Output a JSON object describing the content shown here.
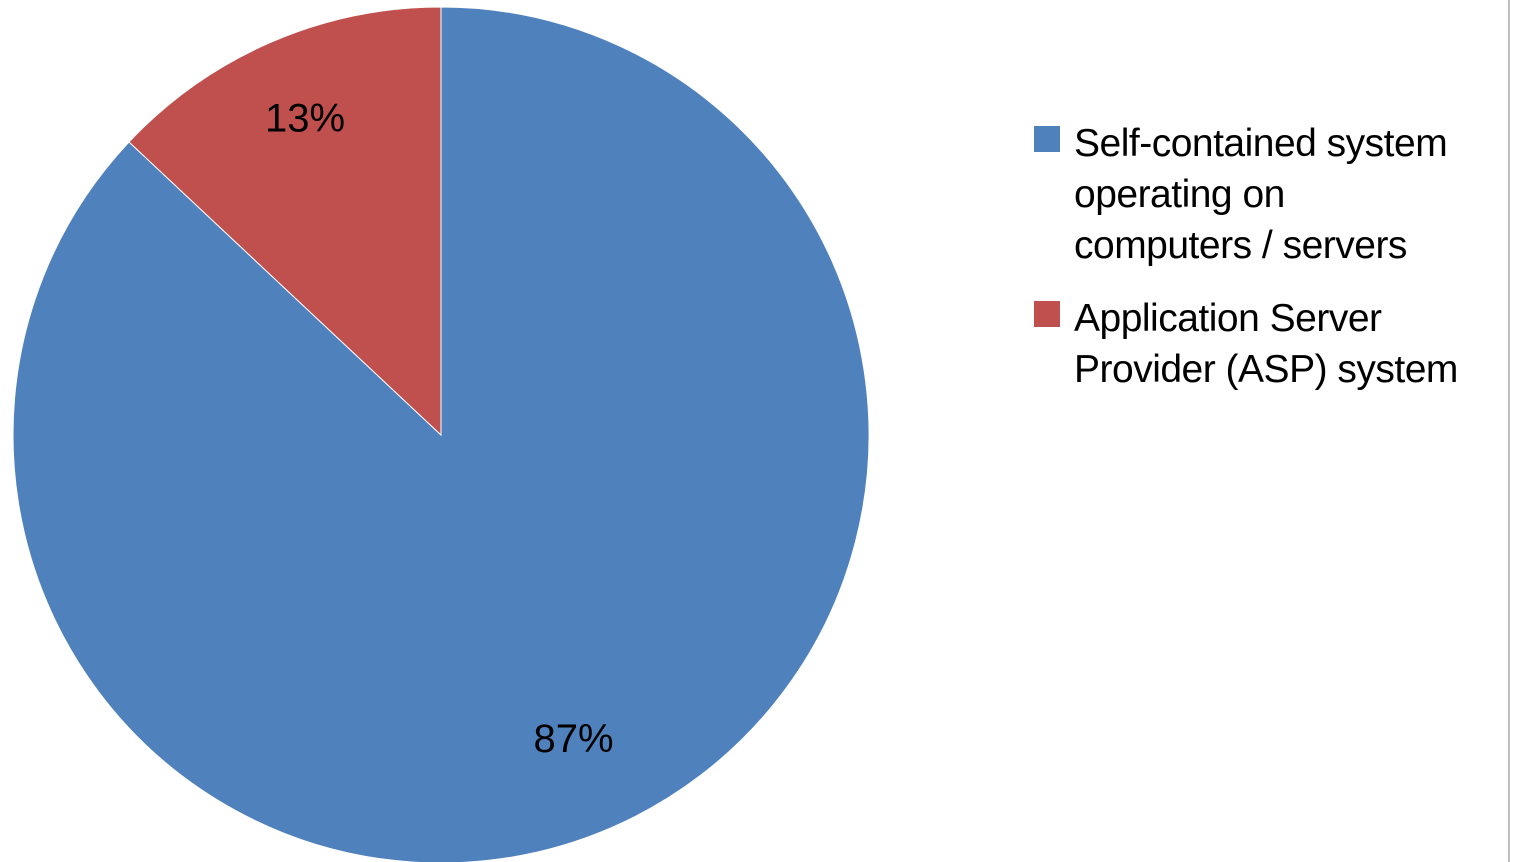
{
  "chart_data": {
    "type": "pie",
    "title": "",
    "start_angle_deg": 0,
    "direction": "clockwise",
    "slices": [
      {
        "name": "Self-contained system\noperating on\ncomputers / servers",
        "value": 87,
        "label": "87%",
        "color": "#4F81BD"
      },
      {
        "name": "Application Server\nProvider (ASP) system",
        "value": 13,
        "label": "13%",
        "color": "#C0504D"
      }
    ],
    "legend_position": "right"
  }
}
